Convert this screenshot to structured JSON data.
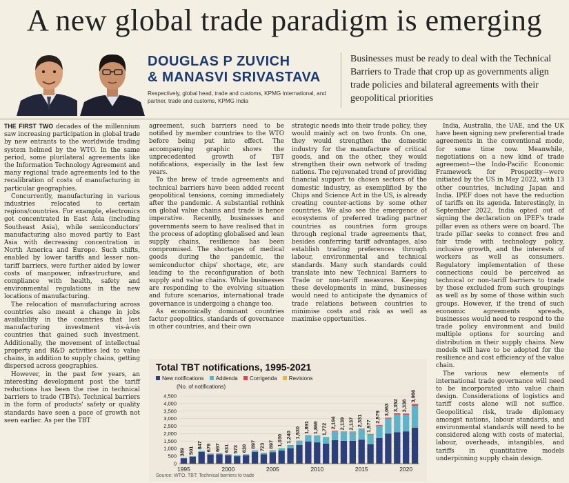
{
  "headline": "A new global trade paradigm is emerging",
  "authors": {
    "line1": "DOUGLAS P ZUVICH",
    "line2": "& MANASVI SRIVASTAVA",
    "role": "Respectively, global head, trade and customs, KPMG International, and partner, trade and customs, KPMG India"
  },
  "deck": "Businesses must be ready to deal with the Technical Barriers to Trade that crop up as governments align trade policies and bilateral agreements with their geopolitical priorities",
  "columns": [
    {
      "lead": "THE FIRST TWO",
      "paragraphs": [
        " decades of the millennium saw increasing participation in global trade by new entrants to the worldwide trading system helmed by the WTO. In the same period, some plurilateral agreements like the Information Technology Agreement and many regional trade agreements led to the recalibration of costs of manufacturing in particular geographies.",
        "Concurrently, manufacturing in various industries relocated to certain regions/countries. For example, electronics got concentrated in East Asia (including Southeast Asia), while semiconductors' manufacturing also moved partly to East Asia with decreasing concentration in North America and Europe. Such shifts, enabled by lower tariffs and lesser non-tariff barriers, were further aided by lower costs of manpower, infrastructure, and compliance with health, safety and environmental regulations in the new locations of manufacturing.",
        "The relocation of manufacturing across countries also meant a change in jobs availability in the countries that lost manufacturing investment vis-à-vis countries that gained such investment. Additionally, the movement of intellectual property and R&D activities led to value chains, in addition to supply chains, getting dispersed across geographies.",
        "However, in the past few years, an interesting development post the tariff reductions has been the rise in technical barriers to trade (TBTs). Technical barriers in the form of products' safety or quality standards have seen a pace of growth not seen earlier. As per the TBT"
      ]
    },
    {
      "paragraphs": [
        "agreement, such barriers need to be notified by member countries to the WTO before being put into effect. The accompanying graphic shows the unprecedented growth of TBT notifications, especially in the last few years.",
        "To the brew of trade agreements and technical barriers have been added recent geopolitical tensions, coming immediately after the pandemic. A substantial rethink on global value chains and trade is hence imperative. Recently, businesses and governments seem to have realised that in the process of adopting globalised and lean supply chains, resilience has been compromised. The shortages of medical goods during the pandemic, the semiconductor chips' shortage, etc, are leading to the reconfiguration of both supply and value chains. While businesses are responding to the evolving situation and future scenarios, international trade governance is undergoing a change too.",
        "As economically dominant countries factor geopolitics, standards of governance in other countries, and their own"
      ]
    },
    {
      "paragraphs": [
        "strategic needs into their trade policy, they would mainly act on two fronts. On one, they would strengthen the domestic industry for the manufacture of critical goods, and on the other, they would strengthen their own network of trading nations. The rejuvenated trend of providing financial support to chosen sectors of the domestic industry, as exemplified by the Chips and Science Act in the US, is already creating counter-actions by some other countries. We also see the emergence of ecosystems of preferred trading partner countries as countries form groups through regional trade agreements that, besides conferring tariff advantages, also establish trading preferences through labour, environmental and technical standards. Many such standards could translate into new Technical Barriers to Trade or non-tariff measures. Keeping these developments in mind, businesses would need to anticipate the dynamics of trade relations between countries to minimise costs and risk as well as maximise opportunities."
      ]
    },
    {
      "paragraphs": [
        "India, Australia, the UAE, and the UK have been signing new preferential trade agreements in the conventional mode, for some time now. Meanwhile, negotiations on a new kind of trade agreement—the Indo-Pacific Economic Framework for Prosperity—were initiated by the US in May 2022, with 13 other countries, including Japan and India. IPEF does not have the reduction of tariffs on its agenda. Interestingly, in September 2022, India opted out of signing the declaration on IPEF's trade pillar even as others were on board. The trade pillar seeks to connect free and fair trade with technology policy, inclusive growth, and the interests of workers as well as consumers. Regulatory implementation of these connections could be perceived as technical or non-tariff barriers to trade by those excluded from such groupings as well as by some of those within such groups. However, if the trend of such economic agreements spreads, businesses would need to respond to the trade policy environment and build multiple options for sourcing and distribution in their supply chains. New models will have to be adopted for the resilience and cost efficiency of the value chain.",
        "The various new elements of international trade governance will need to be incorporated into value chain design. Considerations of logistics and tariff costs alone will not suffice. Geopolitical risk, trade diplomacy amongst nations, labour standards, and environmental standards will need to be considered along with costs of material, labour, overheads, intangibles, and tariffs in quantitative models underpinning supply chain design."
      ]
    }
  ],
  "chart_data": {
    "type": "bar",
    "stacked": true,
    "title": "Total TBT notifications, 1995-2021",
    "unit_label": "(No. of notifications)",
    "source": "Source: WTO, TBT: Technical barriers to trade",
    "x": [
      1995,
      1996,
      1997,
      1998,
      1999,
      2000,
      2001,
      2002,
      2003,
      2004,
      2005,
      2006,
      2007,
      2008,
      2009,
      2010,
      2011,
      2012,
      2013,
      2014,
      2015,
      2016,
      2017,
      2018,
      2019,
      2020,
      2021
    ],
    "x_tick_labels": [
      "1995",
      "2000",
      "2005",
      "2010",
      "2015",
      "2020"
    ],
    "y_ticks": [
      "0",
      "500",
      "1,000",
      "1,500",
      "2,000",
      "2,500",
      "3,000",
      "3,500",
      "4,000",
      "4,500"
    ],
    "ylim": [
      0,
      4500
    ],
    "totals": [
      389,
      501,
      847,
      679,
      697,
      631,
      573,
      630,
      897,
      723,
      897,
      1030,
      1240,
      1530,
      1891,
      1869,
      1772,
      2194,
      2139,
      2137,
      2331,
      1977,
      2579,
      3063,
      3352,
      3336,
      3966
    ],
    "total_labels": [
      "389",
      "501",
      "847",
      "679",
      "697",
      "631",
      "573",
      "630",
      "897",
      "723",
      "897",
      "1,030",
      "1,240",
      "1,530",
      "1,891",
      "1,869",
      "1,772",
      "2,194",
      "2,139",
      "2,137",
      "2,331",
      "1,977",
      "2,579",
      "3,063",
      "3,352",
      "3,336",
      "3,966"
    ],
    "series": [
      {
        "name": "New notifications",
        "color": "#2b3f7a",
        "values": [
          360,
          460,
          780,
          610,
          630,
          560,
          500,
          550,
          780,
          620,
          760,
          870,
          1030,
          1240,
          1480,
          1420,
          1340,
          1570,
          1520,
          1520,
          1600,
          1300,
          1700,
          2000,
          2100,
          2150,
          2400
        ]
      },
      {
        "name": "Addenda",
        "color": "#5fb3c9",
        "values": [
          25,
          36,
          60,
          60,
          60,
          64,
          66,
          72,
          106,
          92,
          124,
          148,
          190,
          265,
          385,
          420,
          410,
          590,
          585,
          585,
          690,
          640,
          830,
          1000,
          1170,
          1100,
          1450
        ]
      },
      {
        "name": "Corrigenda",
        "color": "#d9484e",
        "values": [
          4,
          5,
          7,
          9,
          7,
          7,
          7,
          8,
          11,
          11,
          13,
          12,
          20,
          25,
          26,
          29,
          22,
          34,
          34,
          32,
          41,
          37,
          49,
          63,
          82,
          86,
          116
        ]
      },
      {
        "name": "Revisions",
        "color": "#e8b24a",
        "values": [
          0,
          0,
          0,
          0,
          0,
          0,
          0,
          0,
          0,
          0,
          0,
          0,
          0,
          0,
          0,
          0,
          0,
          0,
          0,
          0,
          0,
          0,
          0,
          0,
          0,
          0,
          0
        ]
      }
    ]
  }
}
